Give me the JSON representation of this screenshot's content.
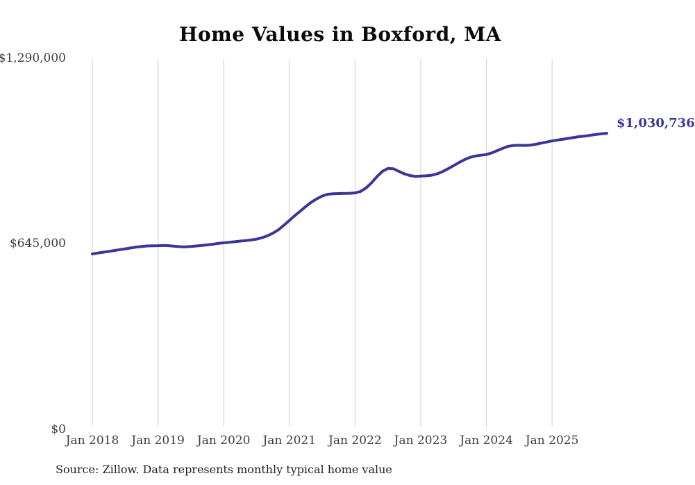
{
  "title": "Home Values in Boxford, MA",
  "end_label": "$1,030,736",
  "source_note": "Source: Zillow. Data represents monthly typical home value",
  "colors": {
    "line": "#3a359b",
    "grid": "#cccccc",
    "title_text": "#0b0b0b",
    "axis_text": "#3d3d3d",
    "end_label_text": "#3a359b",
    "background": "#ffffff"
  },
  "y_axis": {
    "tick_labels": [
      "$1,290,000",
      "$645,000",
      "$0"
    ],
    "tick_values": [
      1290000,
      645000,
      0
    ]
  },
  "x_axis": {
    "tick_labels": [
      "Jan 2018",
      "Jan 2019",
      "Jan 2020",
      "Jan 2021",
      "Jan 2022",
      "Jan 2023",
      "Jan 2024",
      "Jan 2025"
    ]
  },
  "chart_data": {
    "type": "line",
    "title": "Home Values in Boxford, MA",
    "ylabel": "",
    "xlabel": "",
    "ylim": [
      0,
      1290000
    ],
    "grid": "vertical-yearly",
    "legend": "none",
    "line_color": "#3a359b",
    "end_label": "$1,030,736",
    "y_tick_labels": [
      "$1,290,000",
      "$645,000",
      "$0"
    ],
    "x_tick_labels": [
      "Jan 2018",
      "Jan 2019",
      "Jan 2020",
      "Jan 2021",
      "Jan 2022",
      "Jan 2023",
      "Jan 2024",
      "Jan 2025"
    ],
    "frequency": "monthly",
    "x": [
      "2018-01",
      "2018-02",
      "2018-03",
      "2018-04",
      "2018-05",
      "2018-06",
      "2018-07",
      "2018-08",
      "2018-09",
      "2018-10",
      "2018-11",
      "2018-12",
      "2019-01",
      "2019-02",
      "2019-03",
      "2019-04",
      "2019-05",
      "2019-06",
      "2019-07",
      "2019-08",
      "2019-09",
      "2019-10",
      "2019-11",
      "2019-12",
      "2020-01",
      "2020-02",
      "2020-03",
      "2020-04",
      "2020-05",
      "2020-06",
      "2020-07",
      "2020-08",
      "2020-09",
      "2020-10",
      "2020-11",
      "2020-12",
      "2021-01",
      "2021-02",
      "2021-03",
      "2021-04",
      "2021-05",
      "2021-06",
      "2021-07",
      "2021-08",
      "2021-09",
      "2021-10",
      "2021-11",
      "2021-12",
      "2022-01",
      "2022-02",
      "2022-03",
      "2022-04",
      "2022-05",
      "2022-06",
      "2022-07",
      "2022-08",
      "2022-09",
      "2022-10",
      "2022-11",
      "2022-12",
      "2023-01",
      "2023-02",
      "2023-03",
      "2023-04",
      "2023-05",
      "2023-06",
      "2023-07",
      "2023-08",
      "2023-09",
      "2023-10",
      "2023-11",
      "2023-12",
      "2024-01",
      "2024-02",
      "2024-03",
      "2024-04",
      "2024-05",
      "2024-06",
      "2024-07",
      "2024-08",
      "2024-09",
      "2024-10",
      "2024-11",
      "2024-12",
      "2025-01",
      "2025-02",
      "2025-03",
      "2025-04",
      "2025-05",
      "2025-06",
      "2025-07",
      "2025-08",
      "2025-09",
      "2025-10",
      "2025-11"
    ],
    "values": [
      606000,
      609000,
      612000,
      615000,
      618000,
      621000,
      624000,
      627000,
      630000,
      632000,
      634000,
      634500,
      635000,
      636000,
      635000,
      633000,
      631500,
      631000,
      632000,
      634000,
      636000,
      638000,
      640000,
      643000,
      645000,
      647000,
      649000,
      651000,
      653000,
      655000,
      658000,
      663000,
      670000,
      679000,
      691000,
      707000,
      724000,
      741000,
      757000,
      773000,
      788000,
      800000,
      810000,
      816000,
      818000,
      818500,
      819000,
      819500,
      821000,
      826000,
      838000,
      856000,
      878000,
      897000,
      907000,
      906000,
      897000,
      888000,
      882000,
      879000,
      880000,
      881000,
      883000,
      888000,
      896000,
      906000,
      917000,
      928000,
      938000,
      946000,
      951000,
      953500,
      956000,
      962000,
      970000,
      978000,
      985000,
      988000,
      988500,
      988000,
      989000,
      992000,
      996000,
      1000000,
      1004000,
      1007000,
      1010000,
      1013000,
      1016000,
      1019000,
      1021000,
      1024000,
      1026500,
      1029000,
      1030736
    ]
  }
}
